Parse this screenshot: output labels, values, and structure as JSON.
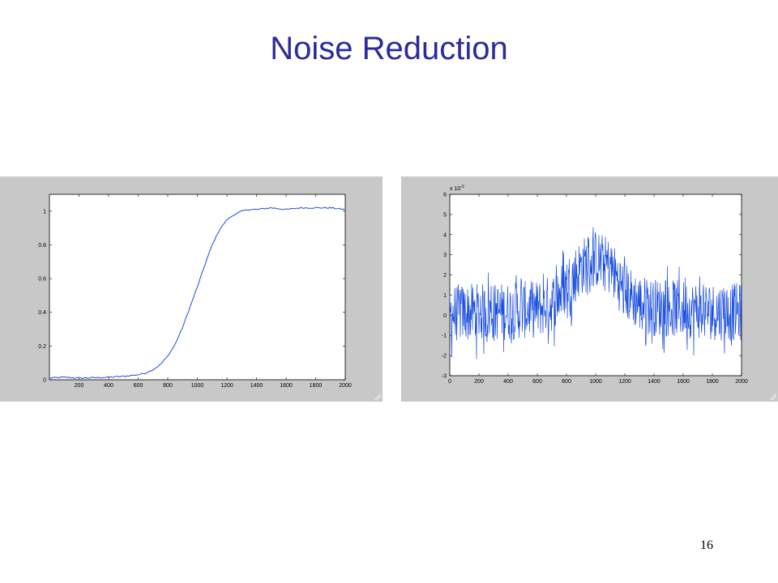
{
  "slide": {
    "title": "Noise Reduction",
    "page_number": "16",
    "title_color": "#2b2b9b",
    "line_color": "#1a4ee0"
  },
  "chart_data": [
    {
      "type": "line",
      "title": "",
      "xlabel": "",
      "ylabel": "",
      "xlim": [
        0,
        2000
      ],
      "ylim": [
        0,
        1.1
      ],
      "x_ticks": [
        200,
        400,
        600,
        800,
        1000,
        1200,
        1400,
        1600,
        1800,
        2000
      ],
      "y_ticks": [
        0,
        0.2,
        0.4,
        0.6,
        0.8,
        1
      ],
      "grid": false,
      "series": [
        {
          "x": [
            0,
            100,
            200,
            300,
            400,
            500,
            600,
            650,
            700,
            750,
            800,
            850,
            900,
            950,
            1000,
            1050,
            1100,
            1150,
            1200,
            1250,
            1300,
            1350,
            1400,
            1500,
            1600,
            1700,
            1800,
            1900,
            2000
          ],
          "values": [
            0.01,
            0.015,
            0.01,
            0.012,
            0.015,
            0.02,
            0.03,
            0.04,
            0.06,
            0.09,
            0.14,
            0.21,
            0.31,
            0.43,
            0.55,
            0.68,
            0.8,
            0.89,
            0.95,
            0.98,
            1.0,
            1.01,
            1.01,
            1.02,
            1.01,
            1.02,
            1.02,
            1.02,
            1.01
          ]
        }
      ]
    },
    {
      "type": "line",
      "title": "",
      "xlabel": "",
      "ylabel": "",
      "scale_label": "x 10",
      "scale_exponent": "-3",
      "xlim": [
        0,
        2000
      ],
      "ylim": [
        -3,
        6
      ],
      "x_ticks": [
        0,
        200,
        400,
        600,
        800,
        1000,
        1200,
        1400,
        1600,
        1800,
        2000
      ],
      "y_ticks": [
        -3,
        -2,
        -1,
        0,
        1,
        2,
        3,
        4,
        5,
        6
      ],
      "grid": false,
      "series": [
        {
          "x": [
            0,
            200,
            400,
            600,
            700,
            800,
            900,
            1000,
            1100,
            1200,
            1300,
            1400,
            1600,
            1800,
            2000
          ],
          "values": [
            0.1,
            0.15,
            0.2,
            0.3,
            0.6,
            1.5,
            2.4,
            2.8,
            2.4,
            1.2,
            0.6,
            0.4,
            0.3,
            0.2,
            0.15
          ],
          "noise_amplitude": 1.8
        }
      ]
    }
  ]
}
